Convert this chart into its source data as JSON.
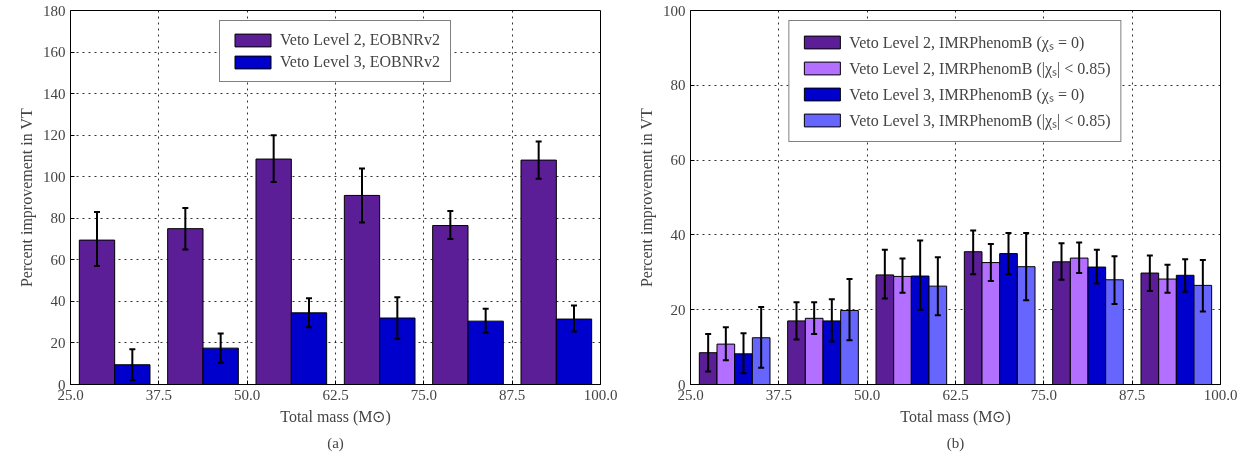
{
  "chart_data": [
    {
      "type": "bar",
      "xlabel": "Total mass (M⊙)",
      "ylabel": "Percent improvement in VT",
      "annotations": [
        "(a)"
      ],
      "xlim": [
        25,
        100
      ],
      "ylim": [
        0,
        180
      ],
      "xticks": [
        {
          "value": 25,
          "label": "25.0"
        },
        {
          "value": 37.5,
          "label": "37.5"
        },
        {
          "value": 50,
          "label": "50.0"
        },
        {
          "value": 62.5,
          "label": "62.5"
        },
        {
          "value": 75,
          "label": "75.0"
        },
        {
          "value": 87.5,
          "label": "87.5"
        },
        {
          "value": 100,
          "label": "100.0"
        }
      ],
      "yticks": [
        0,
        20,
        40,
        60,
        80,
        100,
        120,
        140,
        160,
        180
      ],
      "grid": true,
      "legend": "top",
      "series": [
        {
          "name": "Veto Level 2, EOBNRv2",
          "color": "#5b1e96",
          "x": [
            28.75,
            41.25,
            53.75,
            66.25,
            78.75,
            91.25
          ],
          "values": [
            69.5,
            75,
            108.5,
            91,
            76.5,
            108
          ],
          "errors": [
            [
              57,
              83
            ],
            [
              65,
              85
            ],
            [
              97.5,
              120
            ],
            [
              78,
              104
            ],
            [
              70,
              83.5
            ],
            [
              99,
              117
            ]
          ]
        },
        {
          "name": "Veto Level 3, EOBNRv2",
          "color": "#0000cc",
          "x": [
            33.75,
            46.25,
            58.75,
            71.25,
            83.75,
            96.25
          ],
          "values": [
            9.5,
            17.5,
            34.5,
            32,
            30.5,
            31.5
          ],
          "errors": [
            [
              2,
              17
            ],
            [
              10.5,
              24.5
            ],
            [
              27.5,
              41.5
            ],
            [
              22,
              42
            ],
            [
              25,
              36.5
            ],
            [
              25.5,
              38
            ]
          ]
        }
      ]
    },
    {
      "type": "bar",
      "xlabel": "Total mass (M⊙)",
      "ylabel": "Percent improvement in VT",
      "annotations": [
        "(b)"
      ],
      "xlim": [
        25,
        100
      ],
      "ylim": [
        0,
        100
      ],
      "xticks": [
        {
          "value": 25,
          "label": "25.0"
        },
        {
          "value": 37.5,
          "label": "37.5"
        },
        {
          "value": 50,
          "label": "50.0"
        },
        {
          "value": 62.5,
          "label": "62.5"
        },
        {
          "value": 75,
          "label": "75.0"
        },
        {
          "value": 87.5,
          "label": "87.5"
        },
        {
          "value": 100,
          "label": "100.0"
        }
      ],
      "yticks": [
        0,
        20,
        40,
        60,
        80,
        100
      ],
      "grid": true,
      "legend": "top",
      "series": [
        {
          "name": "Veto Level 2, IMRPhenomB (χₛ = 0)",
          "color": "#5b1e96",
          "x": [
            27.5,
            40,
            52.5,
            65,
            77.5,
            90
          ],
          "values": [
            8.5,
            17,
            29.3,
            35.5,
            32.8,
            29.8
          ],
          "errors": [
            [
              3.5,
              13.5
            ],
            [
              12,
              22
            ],
            [
              23,
              36
            ],
            [
              29.5,
              41.2
            ],
            [
              28,
              37.8
            ],
            [
              25,
              34.5
            ]
          ]
        },
        {
          "name": "Veto Level 2, IMRPhenomB (|χₛ| < 0.85)",
          "color": "#b36fff",
          "x": [
            30,
            42.5,
            55,
            67.5,
            80,
            92.5
          ],
          "values": [
            10.8,
            17.7,
            28.9,
            32.6,
            33.8,
            28.2
          ],
          "errors": [
            [
              6.5,
              15.3
            ],
            [
              13.5,
              22
            ],
            [
              24.5,
              33.7
            ],
            [
              27.7,
              37.6
            ],
            [
              29.8,
              38
            ],
            [
              24.5,
              32
            ]
          ]
        },
        {
          "name": "Veto Level 3, IMRPhenomB (χₛ = 0)",
          "color": "#0000cc",
          "x": [
            32.5,
            45,
            57.5,
            70,
            82.5,
            95
          ],
          "values": [
            8.2,
            17,
            29,
            35,
            31.4,
            29.2
          ],
          "errors": [
            [
              3,
              13.7
            ],
            [
              11.5,
              22.8
            ],
            [
              20,
              38.5
            ],
            [
              29.5,
              40.5
            ],
            [
              27,
              36
            ],
            [
              24.8,
              33.5
            ]
          ]
        },
        {
          "name": "Veto Level 3, IMRPhenomB (|χₛ| < 0.85)",
          "color": "#6666ff",
          "x": [
            35,
            47.5,
            60,
            72.5,
            85,
            97.5
          ],
          "values": [
            12.5,
            19.8,
            26.3,
            31.5,
            28,
            26.5
          ],
          "errors": [
            [
              4.5,
              20.7
            ],
            [
              11.8,
              28.2
            ],
            [
              18.5,
              34
            ],
            [
              22.5,
              40.5
            ],
            [
              21.5,
              34.3
            ],
            [
              19.5,
              33.3
            ]
          ]
        }
      ]
    }
  ]
}
